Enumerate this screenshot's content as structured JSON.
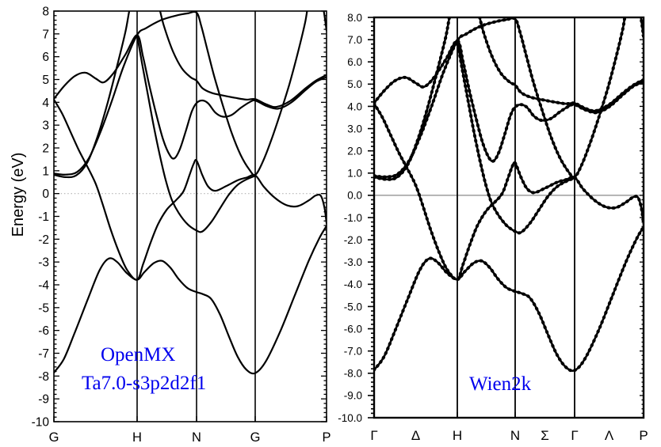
{
  "left_panel": {
    "code_label_line1": "OpenMX",
    "code_label_line2": "Ta7.0-s3p2d2f1",
    "ylabel": "Energy (eV)",
    "ytick_labels": [
      "8",
      "7",
      "6",
      "5",
      "4",
      "3",
      "2",
      "1",
      "0",
      "-1",
      "-2",
      "-3",
      "-4",
      "-5",
      "-6",
      "-7",
      "-8",
      "-9",
      "-10"
    ],
    "xtick_labels": [
      "G",
      "H",
      "N",
      "G",
      "P"
    ]
  },
  "right_panel": {
    "code_label": "Wien2k",
    "ytick_labels": [
      "8.0",
      "7.0",
      "6.0",
      "5.0",
      "4.0",
      "3.0",
      "2.0",
      "1.0",
      "0.0",
      "-1.0",
      "-2.0",
      "-3.0",
      "-4.0",
      "-5.0",
      "-6.0",
      "-7.0",
      "-8.0",
      "-9.0",
      "-10.0"
    ],
    "xtick_labels": [
      "Γ",
      "Δ",
      "H",
      "N",
      "Σ",
      "Γ",
      "Λ",
      "P"
    ]
  },
  "chart_data": {
    "type": "line",
    "ylabel": "Energy (eV)",
    "ylim": [
      -10,
      8
    ],
    "ytick_step_major": 1.0,
    "ytick_step_minor": 0.2,
    "fermi_level": 0,
    "path_nodes": [
      "G",
      "H",
      "N",
      "G",
      "P"
    ],
    "node_positions": [
      0,
      1,
      2,
      3,
      4
    ],
    "right_xlabel_positions": [
      0,
      0.5,
      1,
      2,
      2.5,
      3,
      3.5,
      4
    ],
    "accent_color": "#0000ee",
    "curve_color": "#000000",
    "fermi_line_color_left": "#b3b3b3",
    "fermi_line_color_right": "#8a8a8a",
    "bands": [
      {
        "name": "band1",
        "points": [
          [
            0,
            -7.85
          ],
          [
            0.12,
            -7.25
          ],
          [
            0.25,
            -6.1
          ],
          [
            0.4,
            -4.7
          ],
          [
            0.55,
            -3.35
          ],
          [
            0.66,
            -2.85
          ],
          [
            0.76,
            -3.0
          ],
          [
            0.88,
            -3.5
          ],
          [
            1,
            -3.78
          ],
          [
            1.12,
            -3.45
          ],
          [
            1.28,
            -3.05
          ],
          [
            1.42,
            -2.95
          ],
          [
            1.56,
            -3.25
          ],
          [
            1.7,
            -3.75
          ],
          [
            1.85,
            -4.15
          ],
          [
            2,
            -4.32
          ],
          [
            2.12,
            -4.42
          ],
          [
            2.25,
            -4.62
          ],
          [
            2.4,
            -5.3
          ],
          [
            2.55,
            -6.25
          ],
          [
            2.7,
            -7.15
          ],
          [
            2.85,
            -7.72
          ],
          [
            3,
            -7.87
          ],
          [
            3.15,
            -7.35
          ],
          [
            3.35,
            -6.05
          ],
          [
            3.55,
            -4.5
          ],
          [
            3.75,
            -2.95
          ],
          [
            3.9,
            -1.95
          ],
          [
            4,
            -1.42
          ]
        ]
      },
      {
        "name": "band2",
        "points": [
          [
            0,
            0.88
          ],
          [
            0.14,
            0.83
          ],
          [
            0.28,
            0.95
          ],
          [
            0.42,
            1.55
          ],
          [
            0.56,
            2.7
          ],
          [
            0.7,
            4.1
          ],
          [
            0.84,
            5.6
          ],
          [
            1,
            6.95
          ],
          [
            1.15,
            7.25
          ],
          [
            1.4,
            7.6
          ],
          [
            1.65,
            7.8
          ],
          [
            1.85,
            7.9
          ],
          [
            2,
            7.93
          ],
          [
            2.08,
            7.35
          ],
          [
            2.18,
            6.35
          ],
          [
            2.3,
            5.15
          ],
          [
            2.45,
            3.85
          ],
          [
            2.6,
            2.65
          ],
          [
            2.75,
            1.7
          ],
          [
            2.9,
            1.05
          ],
          [
            3,
            0.82
          ],
          [
            3.1,
            1.35
          ],
          [
            3.22,
            2.3
          ],
          [
            3.35,
            3.5
          ],
          [
            3.48,
            4.8
          ],
          [
            3.6,
            6.2
          ],
          [
            3.7,
            7.5
          ],
          [
            3.77,
            8.7
          ],
          [
            3.88,
            9.0
          ],
          [
            3.95,
            8.2
          ],
          [
            4,
            7.15
          ]
        ]
      },
      {
        "name": "band3",
        "points": [
          [
            0,
            0.82
          ],
          [
            0.14,
            0.72
          ],
          [
            0.27,
            0.8
          ],
          [
            0.4,
            1.35
          ],
          [
            0.52,
            2.45
          ],
          [
            0.64,
            3.9
          ],
          [
            0.76,
            5.6
          ],
          [
            0.86,
            7.1
          ],
          [
            0.93,
            8.4
          ],
          [
            1.05,
            9.2
          ],
          [
            1.3,
            8.7
          ],
          [
            1.45,
            7.35
          ],
          [
            1.6,
            6.25
          ],
          [
            1.75,
            5.5
          ],
          [
            1.9,
            5.1
          ],
          [
            2,
            4.95
          ],
          [
            2.1,
            4.62
          ],
          [
            2.25,
            4.42
          ],
          [
            2.45,
            4.3
          ],
          [
            2.65,
            4.2
          ],
          [
            2.85,
            4.12
          ],
          [
            3,
            4.14
          ],
          [
            3.15,
            3.92
          ],
          [
            3.3,
            3.8
          ],
          [
            3.5,
            4.08
          ],
          [
            3.7,
            4.6
          ],
          [
            3.85,
            4.95
          ],
          [
            4,
            5.2
          ]
        ]
      },
      {
        "name": "band4",
        "points": [
          [
            0,
            4.15
          ],
          [
            0.12,
            4.7
          ],
          [
            0.25,
            5.15
          ],
          [
            0.38,
            5.3
          ],
          [
            0.5,
            5.05
          ],
          [
            0.6,
            4.88
          ],
          [
            0.72,
            5.3
          ],
          [
            0.86,
            6.1
          ],
          [
            1,
            6.95
          ],
          [
            1.1,
            6.0
          ],
          [
            1.2,
            4.8
          ],
          [
            1.32,
            3.5
          ],
          [
            1.44,
            2.35
          ],
          [
            1.55,
            1.68
          ],
          [
            1.63,
            1.55
          ],
          [
            1.72,
            1.95
          ],
          [
            1.82,
            2.75
          ],
          [
            1.92,
            3.6
          ],
          [
            2,
            3.97
          ],
          [
            2.1,
            4.08
          ],
          [
            2.2,
            3.95
          ],
          [
            2.32,
            3.55
          ],
          [
            2.45,
            3.37
          ],
          [
            2.6,
            3.45
          ],
          [
            2.75,
            3.75
          ],
          [
            2.9,
            4.0
          ],
          [
            3,
            4.08
          ],
          [
            3.15,
            3.85
          ],
          [
            3.32,
            3.72
          ],
          [
            3.5,
            3.98
          ],
          [
            3.7,
            4.52
          ],
          [
            3.85,
            4.9
          ],
          [
            4,
            5.1
          ]
        ]
      },
      {
        "name": "band5",
        "points": [
          [
            0,
            4.12
          ],
          [
            0.1,
            3.5
          ],
          [
            0.2,
            2.7
          ],
          [
            0.3,
            1.9
          ],
          [
            0.4,
            1.2
          ],
          [
            0.5,
            0.45
          ],
          [
            0.58,
            -0.4
          ],
          [
            0.68,
            -1.55
          ],
          [
            0.78,
            -2.55
          ],
          [
            0.88,
            -3.35
          ],
          [
            1,
            -3.78
          ],
          [
            1.1,
            -3.1
          ],
          [
            1.22,
            -2.2
          ],
          [
            1.35,
            -1.35
          ],
          [
            1.5,
            -0.7
          ],
          [
            1.65,
            -0.3
          ],
          [
            1.78,
            0.1
          ],
          [
            1.88,
            0.8
          ],
          [
            1.95,
            1.3
          ],
          [
            2,
            1.45
          ],
          [
            2.1,
            0.8
          ],
          [
            2.2,
            0.3
          ],
          [
            2.32,
            0.12
          ],
          [
            2.5,
            0.32
          ],
          [
            2.7,
            0.58
          ],
          [
            2.85,
            0.7
          ],
          [
            3,
            0.8
          ],
          [
            3.12,
            0.3
          ],
          [
            3.28,
            -0.2
          ],
          [
            3.45,
            -0.52
          ],
          [
            3.6,
            -0.55
          ],
          [
            3.75,
            -0.3
          ],
          [
            3.85,
            -0.08
          ],
          [
            3.92,
            -0.1
          ],
          [
            3.97,
            -0.6
          ],
          [
            4,
            -1.3
          ]
        ]
      },
      {
        "name": "band6",
        "points": [
          [
            1,
            6.95
          ],
          [
            1.08,
            5.75
          ],
          [
            1.18,
            4.35
          ],
          [
            1.28,
            2.95
          ],
          [
            1.38,
            1.7
          ],
          [
            1.48,
            0.6
          ],
          [
            1.58,
            -0.25
          ],
          [
            1.7,
            -0.85
          ],
          [
            1.85,
            -1.35
          ],
          [
            2,
            -1.62
          ],
          [
            2.1,
            -1.66
          ],
          [
            2.25,
            -1.25
          ],
          [
            2.4,
            -0.65
          ],
          [
            2.55,
            -0.05
          ],
          [
            2.7,
            0.38
          ],
          [
            2.85,
            0.62
          ],
          [
            3,
            0.78
          ]
        ]
      }
    ]
  }
}
